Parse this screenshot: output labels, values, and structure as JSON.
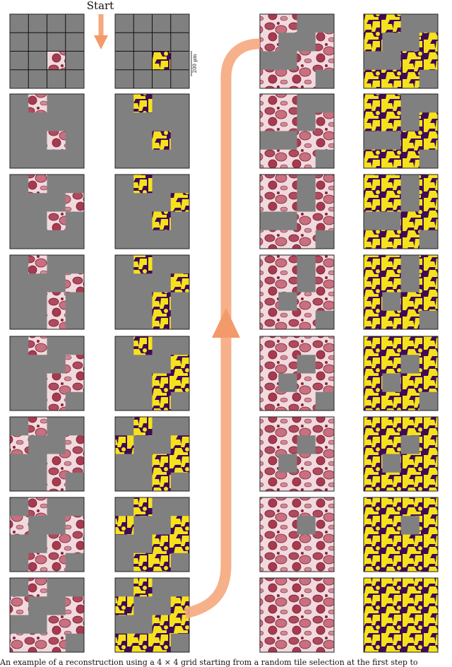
{
  "start_label": "Start",
  "scale_bar": "200 µm",
  "caption": "An example of a reconstruction using a 4 × 4 grid starting from a random tile selection at the first step to"
}
